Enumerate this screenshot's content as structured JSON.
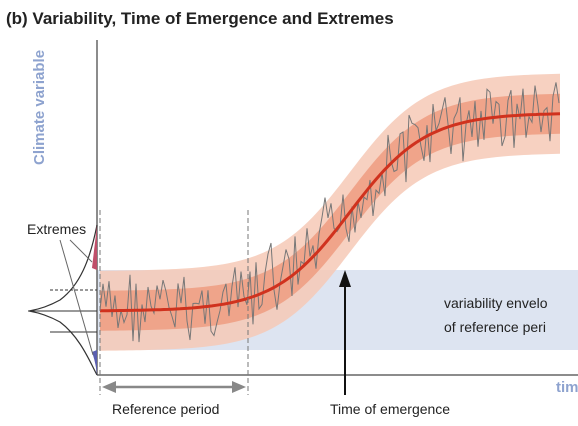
{
  "header": {
    "title": "(b) Variability, Time of Emergence and Extremes"
  },
  "axes": {
    "y_label": "Climate variable",
    "x_label": "tim"
  },
  "labels": {
    "extremes": "Extremes",
    "reference_period": "Reference period",
    "time_of_emergence": "Time of emergence",
    "envelope_line1": "variability envelo",
    "envelope_line2": "of reference peri"
  }
}
